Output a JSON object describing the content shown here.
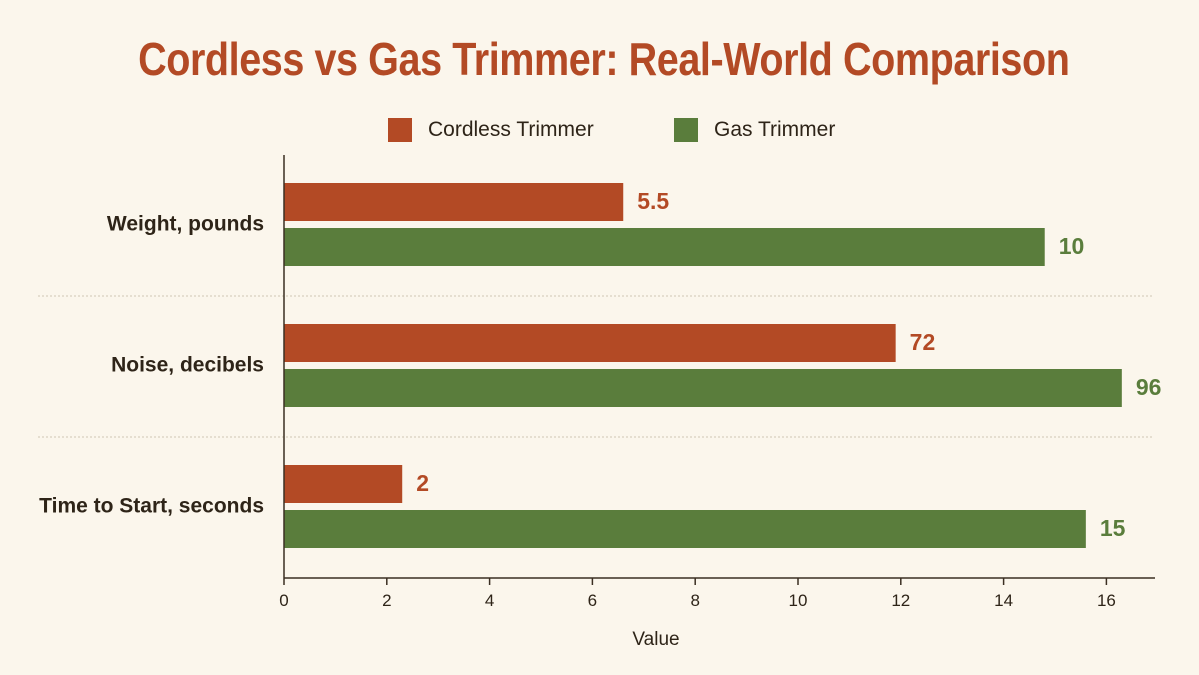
{
  "chart_data": {
    "type": "bar",
    "orientation": "horizontal",
    "title": "Cordless vs Gas Trimmer: Real-World Comparison",
    "categories": [
      "Weight, pounds",
      "Noise, decibels",
      "Time to Start, seconds"
    ],
    "series": [
      {
        "name": "Cordless Trimmer",
        "color": "#b34a25",
        "values": [
          6.6,
          11.9,
          2.3
        ],
        "labels": [
          "5.5",
          "72",
          "2"
        ]
      },
      {
        "name": "Gas Trimmer",
        "color": "#5a7d3c",
        "values": [
          14.8,
          16.3,
          15.6
        ],
        "labels": [
          "10",
          "96",
          "15"
        ]
      }
    ],
    "xlabel": "Value",
    "ylabel": "",
    "xlim": [
      0,
      17
    ],
    "xticks": [
      0,
      2,
      4,
      6,
      8,
      10,
      12,
      14,
      16
    ],
    "legend_position": "top-center",
    "grid": false
  }
}
